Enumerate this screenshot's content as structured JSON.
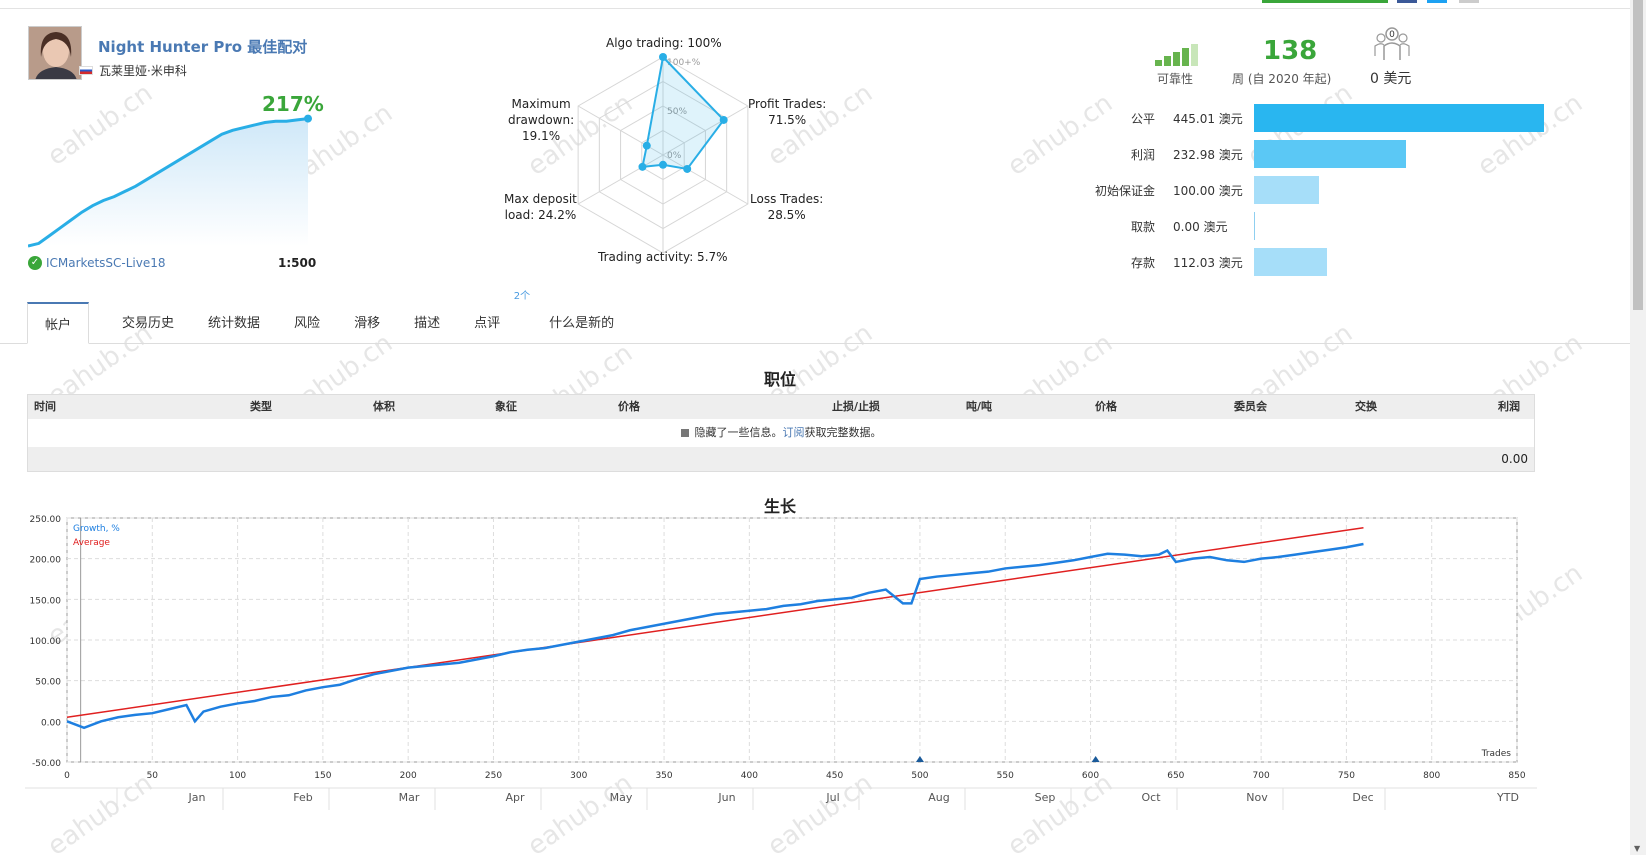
{
  "signal": {
    "name": "Night Hunter Pro 最佳配对",
    "author": "瓦莱里娅·米申科",
    "growth_pct": "217%",
    "broker": "ICMarketsSC-Live18",
    "leverage": "1:500",
    "mini_growth_series": [
      0,
      2,
      8,
      14,
      20,
      26,
      31,
      35,
      38,
      42,
      46,
      51,
      56,
      61,
      66,
      71,
      76,
      81,
      86,
      89,
      91,
      93,
      95,
      96,
      96,
      97,
      98
    ]
  },
  "radar": {
    "labels": {
      "algo": "Algo trading: 100%",
      "profit": "Profit Trades:\n71.5%",
      "loss": "Loss Trades:\n28.5%",
      "activity": "Trading activity: 5.7%",
      "load": "Max deposit\nload: 24.2%",
      "drawdown": "Maximum\ndrawdown:\n19.1%"
    },
    "scale_labels": [
      "100+%",
      "50%",
      "0%"
    ],
    "values": [
      1.0,
      0.715,
      0.285,
      0.057,
      0.242,
      0.191
    ]
  },
  "stats": {
    "reliability_label": "可靠性",
    "weeks": "138",
    "weeks_label": "周 (自 2020 年起)",
    "subscribers": "0",
    "price": "0 美元"
  },
  "balance": [
    {
      "label": "公平",
      "value": "445.01 澳元",
      "amount": 445.01,
      "color": "#29b6f0"
    },
    {
      "label": "利润",
      "value": "232.98 澳元",
      "amount": 232.98,
      "color": "#5bc8f5"
    },
    {
      "label": "初始保证金",
      "value": "100.00 澳元",
      "amount": 100.0,
      "color": "#a6def9"
    },
    {
      "label": "取款",
      "value": "0.00 澳元",
      "amount": 0.0,
      "color": "#a6def9"
    },
    {
      "label": "存款",
      "value": "112.03 澳元",
      "amount": 112.03,
      "color": "#a6def9"
    }
  ],
  "tabs": [
    {
      "label": "帐户",
      "active": true
    },
    {
      "label": "交易历史"
    },
    {
      "label": "统计数据"
    },
    {
      "label": "风险"
    },
    {
      "label": "滑移"
    },
    {
      "label": "描述"
    },
    {
      "label": "点评",
      "sup": "2个"
    },
    {
      "label": "什么是新的"
    }
  ],
  "positions": {
    "title": "职位",
    "columns": [
      "时间",
      "类型",
      "体积",
      "象征",
      "价格",
      "止损/止损",
      "吨/吨",
      "价格",
      "委员会",
      "交换",
      "利润"
    ],
    "info_text": "隐藏了一些信息。",
    "info_link": "订阅",
    "info_text2": "获取完整数据。",
    "total": "0.00"
  },
  "growth": {
    "title": "生长",
    "legend_growth": "Growth, %",
    "legend_average": "Average",
    "trades_label": "Trades",
    "y_ticks": [
      "250.00",
      "200.00",
      "150.00",
      "100.00",
      "50.00",
      "0.00",
      "-50.00"
    ],
    "x_ticks": [
      "0",
      "50",
      "100",
      "150",
      "200",
      "250",
      "300",
      "350",
      "400",
      "450",
      "500",
      "550",
      "600",
      "650",
      "700",
      "750",
      "800",
      "850"
    ],
    "months": [
      "Jan",
      "Feb",
      "Mar",
      "Apr",
      "May",
      "Jun",
      "Jul",
      "Aug",
      "Sep",
      "Oct",
      "Nov",
      "Dec",
      "YTD"
    ]
  },
  "chart_data": {
    "type": "line",
    "title": "生长",
    "xlabel": "Trades",
    "ylabel": "",
    "xlim": [
      0,
      850
    ],
    "ylim": [
      -50,
      250
    ],
    "series": [
      {
        "name": "Growth, %",
        "color": "#1e7fe0",
        "x": [
          0,
          10,
          20,
          30,
          40,
          50,
          60,
          70,
          75,
          80,
          90,
          100,
          110,
          120,
          130,
          140,
          150,
          160,
          170,
          180,
          190,
          200,
          210,
          220,
          230,
          240,
          250,
          260,
          270,
          280,
          290,
          300,
          310,
          320,
          330,
          340,
          350,
          360,
          370,
          380,
          390,
          400,
          410,
          420,
          430,
          440,
          450,
          460,
          470,
          480,
          490,
          495,
          500,
          510,
          520,
          530,
          540,
          550,
          560,
          570,
          580,
          590,
          600,
          610,
          620,
          630,
          640,
          645,
          650,
          660,
          670,
          680,
          690,
          700,
          710,
          720,
          730,
          740,
          750,
          760
        ],
        "y": [
          0,
          -8,
          0,
          5,
          8,
          10,
          15,
          20,
          0,
          12,
          18,
          22,
          25,
          30,
          32,
          38,
          42,
          45,
          52,
          58,
          62,
          66,
          68,
          70,
          72,
          76,
          80,
          85,
          88,
          90,
          94,
          98,
          102,
          106,
          112,
          116,
          120,
          124,
          128,
          132,
          134,
          136,
          138,
          142,
          144,
          148,
          150,
          152,
          158,
          162,
          145,
          145,
          175,
          178,
          180,
          182,
          184,
          188,
          190,
          192,
          195,
          198,
          202,
          206,
          205,
          203,
          205,
          210,
          196,
          200,
          202,
          198,
          196,
          200,
          202,
          205,
          208,
          211,
          214,
          218
        ]
      },
      {
        "name": "Average",
        "color": "#e02020",
        "x": [
          0,
          760
        ],
        "y": [
          5,
          238
        ]
      }
    ],
    "annotations": [
      {
        "x": 500
      },
      {
        "x": 603
      }
    ]
  }
}
